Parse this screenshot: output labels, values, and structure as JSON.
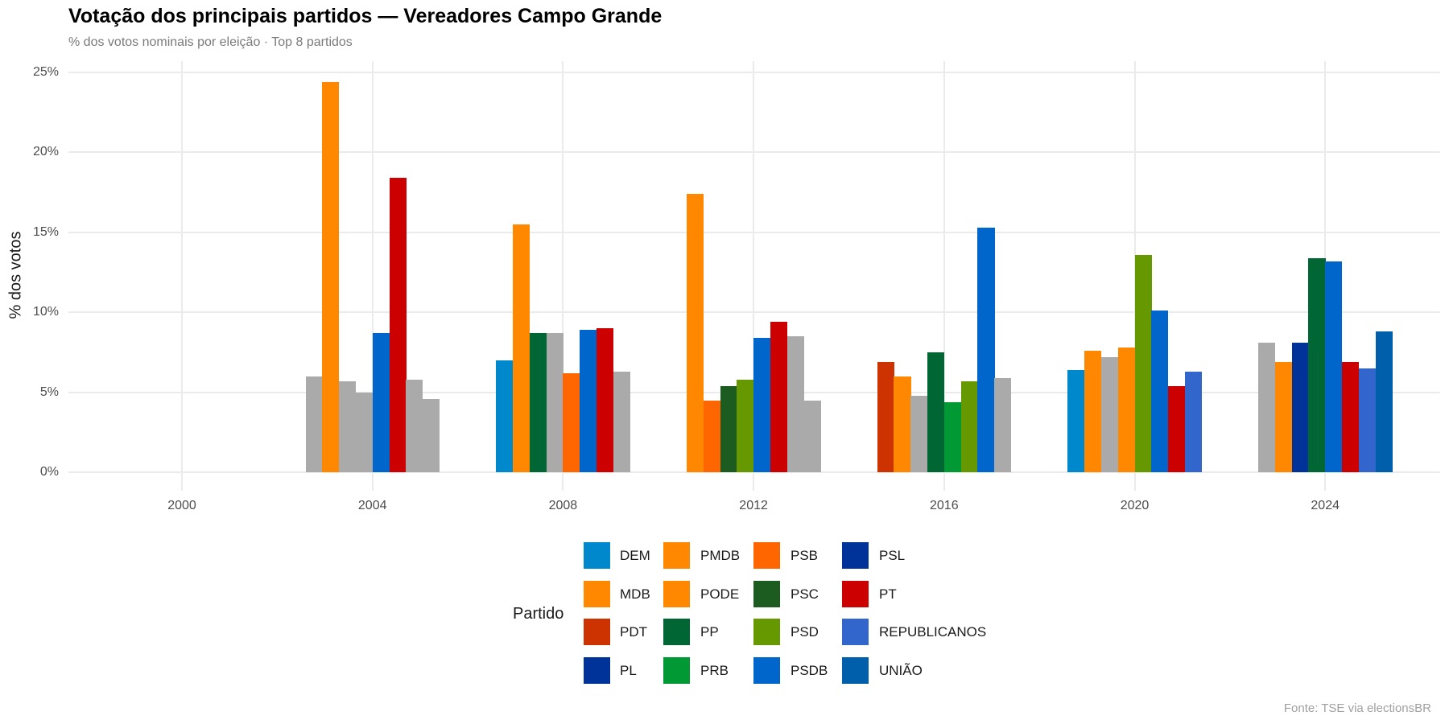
{
  "header": {
    "title": "Votação dos principais partidos — Vereadores Campo Grande",
    "subtitle": "% dos votos nominais por eleição · Top 8 partidos"
  },
  "axes": {
    "ylabel": "% dos votos",
    "yticks": [
      "0%",
      "5%",
      "10%",
      "15%",
      "20%",
      "25%"
    ],
    "xticks": [
      "2000",
      "2004",
      "2008",
      "2012",
      "2016",
      "2020",
      "2024"
    ]
  },
  "legend": {
    "title": "Partido",
    "items": [
      {
        "label": "DEM",
        "color": "#0088CC"
      },
      {
        "label": "MDB",
        "color": "#FF8800"
      },
      {
        "label": "PDT",
        "color": "#CC3300"
      },
      {
        "label": "PL",
        "color": "#003399"
      },
      {
        "label": "PMDB",
        "color": "#FF8800"
      },
      {
        "label": "PODE",
        "color": "#FF8800"
      },
      {
        "label": "PP",
        "color": "#006633"
      },
      {
        "label": "PRB",
        "color": "#009933"
      },
      {
        "label": "PSB",
        "color": "#FF6600"
      },
      {
        "label": "PSC",
        "color": "#1C5C20"
      },
      {
        "label": "PSD",
        "color": "#669900"
      },
      {
        "label": "PSDB",
        "color": "#0066CC"
      },
      {
        "label": "PSL",
        "color": "#003399"
      },
      {
        "label": "PT",
        "color": "#CC0000"
      },
      {
        "label": "REPUBLICANOS",
        "color": "#3366CC"
      },
      {
        "label": "UNIÃO",
        "color": "#005FAA"
      }
    ]
  },
  "caption": "Fonte: TSE via electionsBR",
  "colors": {
    "other": "#AAAAAA"
  },
  "chart_data": {
    "type": "bar",
    "title": "Votação dos principais partidos — Vereadores Campo Grande",
    "subtitle": "% dos votos nominais por eleição · Top 8 partidos",
    "xlabel": "",
    "ylabel": "% dos votos",
    "ylim": [
      0,
      25
    ],
    "grid": true,
    "legend_position": "bottom",
    "categories": [
      "2000",
      "2004",
      "2008",
      "2012",
      "2016",
      "2020",
      "2024"
    ],
    "groups": [
      {
        "year": "2000",
        "bars": []
      },
      {
        "year": "2004",
        "bars": [
          {
            "party": "Outro",
            "value": 6.0
          },
          {
            "party": "PMDB",
            "value": 24.4
          },
          {
            "party": "Outro",
            "value": 5.7
          },
          {
            "party": "Outro",
            "value": 5.0
          },
          {
            "party": "PSDB",
            "value": 8.7
          },
          {
            "party": "PT",
            "value": 18.4
          },
          {
            "party": "Outro",
            "value": 5.8
          },
          {
            "party": "Outro",
            "value": 4.6
          }
        ]
      },
      {
        "year": "2008",
        "bars": [
          {
            "party": "DEM",
            "value": 7.0
          },
          {
            "party": "PMDB",
            "value": 15.5
          },
          {
            "party": "PP",
            "value": 8.7
          },
          {
            "party": "Outro",
            "value": 8.7
          },
          {
            "party": "PSB",
            "value": 6.2
          },
          {
            "party": "PSDB",
            "value": 8.9
          },
          {
            "party": "PT",
            "value": 9.0
          },
          {
            "party": "Outro",
            "value": 6.3
          }
        ]
      },
      {
        "year": "2012",
        "bars": [
          {
            "party": "PMDB",
            "value": 17.4
          },
          {
            "party": "PSB",
            "value": 4.5
          },
          {
            "party": "PSC",
            "value": 5.4
          },
          {
            "party": "PSD",
            "value": 5.8
          },
          {
            "party": "PSDB",
            "value": 8.4
          },
          {
            "party": "PT",
            "value": 9.4
          },
          {
            "party": "Outro",
            "value": 8.5
          },
          {
            "party": "Outro",
            "value": 4.5
          }
        ]
      },
      {
        "year": "2016",
        "bars": [
          {
            "party": "PDT",
            "value": 6.9
          },
          {
            "party": "PMDB",
            "value": 6.0
          },
          {
            "party": "Outro",
            "value": 4.8
          },
          {
            "party": "PP",
            "value": 7.5
          },
          {
            "party": "PRB",
            "value": 4.4
          },
          {
            "party": "PSD",
            "value": 5.7
          },
          {
            "party": "PSDB",
            "value": 15.3
          },
          {
            "party": "Outro",
            "value": 5.9
          }
        ]
      },
      {
        "year": "2020",
        "bars": [
          {
            "party": "DEM",
            "value": 6.4
          },
          {
            "party": "MDB",
            "value": 7.6
          },
          {
            "party": "Outro",
            "value": 7.2
          },
          {
            "party": "PODE",
            "value": 7.8
          },
          {
            "party": "PSD",
            "value": 13.6
          },
          {
            "party": "PSDB",
            "value": 10.1
          },
          {
            "party": "PT",
            "value": 5.4
          },
          {
            "party": "REPUBLICANOS",
            "value": 6.3
          }
        ]
      },
      {
        "year": "2024",
        "bars": [
          {
            "party": "Outro",
            "value": 8.1
          },
          {
            "party": "MDB",
            "value": 6.9
          },
          {
            "party": "PL",
            "value": 8.1
          },
          {
            "party": "PP",
            "value": 13.4
          },
          {
            "party": "PSDB",
            "value": 13.2
          },
          {
            "party": "PT",
            "value": 6.9
          },
          {
            "party": "REPUBLICANOS",
            "value": 6.5
          },
          {
            "party": "UNIÃO",
            "value": 8.8
          }
        ]
      }
    ]
  }
}
